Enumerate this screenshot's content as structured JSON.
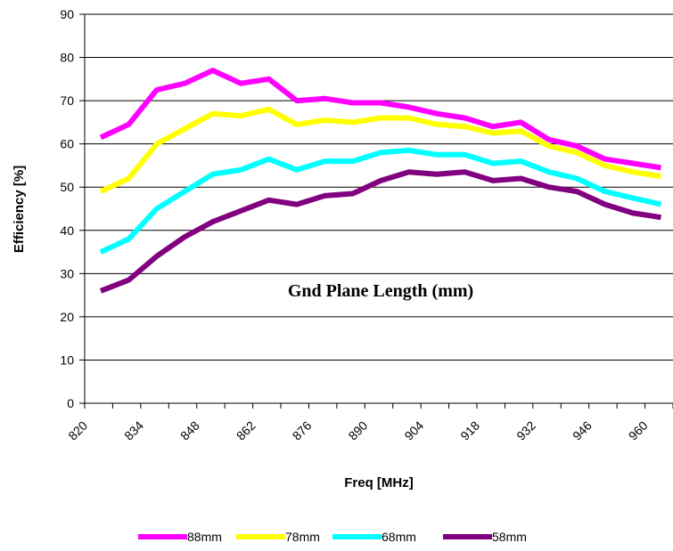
{
  "chart_data": {
    "type": "line",
    "title": "",
    "xlabel": "Freq [MHz]",
    "ylabel": "Efficiency [%]",
    "annotation": "Gnd Plane Length (mm)",
    "ylim": [
      0,
      90
    ],
    "yticks": [
      0,
      10,
      20,
      30,
      40,
      50,
      60,
      70,
      80,
      90
    ],
    "xticks": [
      820,
      834,
      848,
      862,
      876,
      890,
      904,
      918,
      932,
      946,
      960
    ],
    "grid": "horizontal",
    "legend_position": "bottom",
    "x": [
      824,
      831,
      838,
      845,
      852,
      859,
      866,
      873,
      880,
      887,
      894,
      901,
      908,
      915,
      922,
      929,
      936,
      943,
      950,
      957,
      964
    ],
    "series": [
      {
        "name": "88mm",
        "color": "#ff00ff",
        "values": [
          61.5,
          64.5,
          72.5,
          74,
          77,
          74,
          75,
          70,
          70.5,
          69.5,
          69.5,
          68.5,
          67,
          66,
          64,
          65,
          61,
          59.5,
          56.5,
          55.5,
          54.5
        ]
      },
      {
        "name": "78mm",
        "color": "#ffff00",
        "values": [
          49,
          52,
          60,
          63.5,
          67,
          66.5,
          68,
          64.5,
          65.5,
          65,
          66,
          66,
          64.5,
          64,
          62.5,
          63,
          59.5,
          58,
          55,
          53.5,
          52.5
        ]
      },
      {
        "name": "68mm",
        "color": "#00ffff",
        "values": [
          35,
          38,
          45,
          49,
          53,
          54,
          56.5,
          54,
          56,
          56,
          58,
          58.5,
          57.5,
          57.5,
          55.5,
          56,
          53.5,
          52,
          49,
          47.5,
          46
        ]
      },
      {
        "name": "58mm",
        "color": "#800080",
        "values": [
          26,
          28.5,
          34,
          38.5,
          42,
          44.5,
          47,
          46,
          48,
          48.5,
          51.5,
          53.5,
          53,
          53.5,
          51.5,
          52,
          50,
          49,
          46,
          44,
          43
        ]
      }
    ]
  }
}
